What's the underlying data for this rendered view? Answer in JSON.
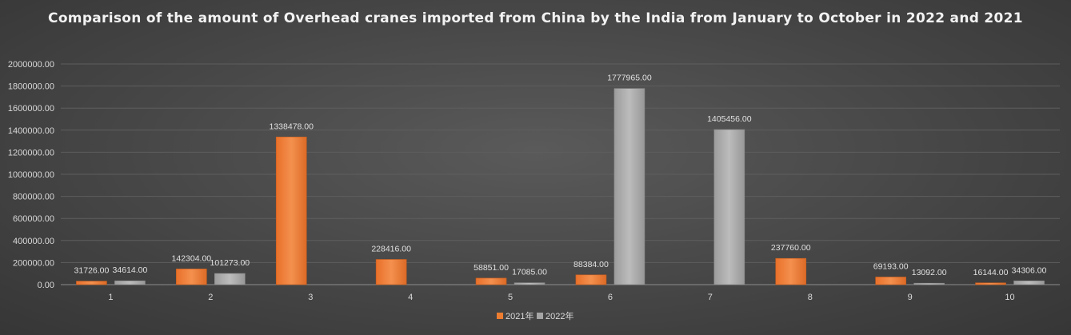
{
  "chart_data": {
    "type": "bar",
    "title": "Comparison of the amount of Overhead cranes imported from China by the India from January to October in 2022 and 2021",
    "categories": [
      "1",
      "2",
      "3",
      "4",
      "5",
      "6",
      "7",
      "8",
      "9",
      "10"
    ],
    "series": [
      {
        "name": "2021年",
        "color": "#ed7d31",
        "values": [
          31726.0,
          142304.0,
          1338478.0,
          228416.0,
          58851.0,
          88384.0,
          null,
          237760.0,
          69193.0,
          16144.0
        ]
      },
      {
        "name": "2022年",
        "color": "#a5a5a5",
        "values": [
          34614.0,
          101273.0,
          null,
          null,
          17085.0,
          1777965.0,
          1405456.0,
          null,
          13092.0,
          34306.0
        ]
      }
    ],
    "y_ticks": [
      "0.00",
      "200000.00",
      "400000.00",
      "600000.00",
      "800000.00",
      "1000000.00",
      "1200000.00",
      "1400000.00",
      "1600000.00",
      "1800000.00",
      "2000000.00"
    ],
    "ylim": [
      0,
      2000000
    ],
    "grid": true,
    "legend_position": "bottom",
    "data_labels": true
  }
}
